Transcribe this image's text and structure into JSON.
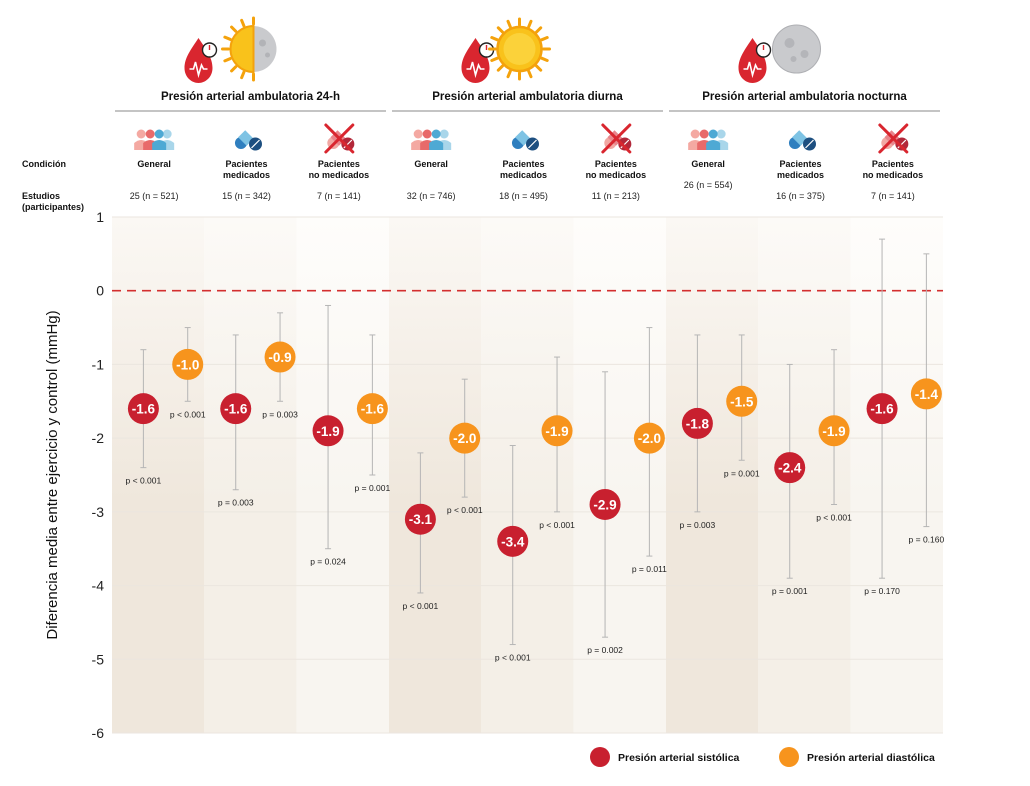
{
  "chart_data": {
    "type": "dot-errorbar",
    "ylabel": "Diferencia media entre ejercicio y control (mmHg)",
    "ylim": [
      -6,
      1
    ],
    "yticks": [
      1,
      0,
      -1,
      -2,
      -3,
      -4,
      -5,
      -6
    ],
    "reference_line": 0,
    "row_labels": {
      "condition": "Condición",
      "studies": "Estudios",
      "studies_sub": "(participantes)"
    },
    "groups": [
      {
        "title": "Presión arterial ambulatoria 24-h",
        "icon": "sun-moon-icon",
        "subgroups": [
          {
            "condition": [
              "General"
            ],
            "icon": "people-icon",
            "studies": "25 (n = 521)",
            "systolic": {
              "mean": -1.6,
              "label": "-1.6",
              "ci": [
                -2.4,
                -0.8
              ],
              "p": "p < 0.001"
            },
            "diastolic": {
              "mean": -1.0,
              "label": "-1.0",
              "ci": [
                -1.5,
                -0.5
              ],
              "p": "p < 0.001"
            }
          },
          {
            "condition": [
              "Pacientes",
              "medicados"
            ],
            "icon": "pill-icon",
            "studies": "15 (n = 342)",
            "systolic": {
              "mean": -1.6,
              "label": "-1.6",
              "ci": [
                -2.7,
                -0.6
              ],
              "p": "p = 0.003"
            },
            "diastolic": {
              "mean": -0.9,
              "label": "-0.9",
              "ci": [
                -1.5,
                -0.3
              ],
              "p": "p = 0.003"
            }
          },
          {
            "condition": [
              "Pacientes",
              "no medicados"
            ],
            "icon": "no-pill-icon",
            "studies": "7 (n = 141)",
            "systolic": {
              "mean": -1.9,
              "label": "-1.9",
              "ci": [
                -3.5,
                -0.2
              ],
              "p": "p = 0.024"
            },
            "diastolic": {
              "mean": -1.6,
              "label": "-1.6",
              "ci": [
                -2.5,
                -0.6
              ],
              "p": "p = 0.001"
            }
          }
        ]
      },
      {
        "title": "Presión arterial ambulatoria diurna",
        "icon": "sun-icon",
        "subgroups": [
          {
            "condition": [
              "General"
            ],
            "icon": "people-icon",
            "studies": "32  (n = 746)",
            "systolic": {
              "mean": -3.1,
              "label": "-3.1",
              "ci": [
                -4.1,
                -2.2
              ],
              "p": "p < 0.001"
            },
            "diastolic": {
              "mean": -2.0,
              "label": "-2.0",
              "ci": [
                -2.8,
                -1.2
              ],
              "p": "p < 0.001"
            }
          },
          {
            "condition": [
              "Pacientes",
              "medicados"
            ],
            "icon": "pill-icon",
            "studies": "18 (n = 495)",
            "systolic": {
              "mean": -3.4,
              "label": "-3.4",
              "ci": [
                -4.8,
                -2.1
              ],
              "p": "p < 0.001"
            },
            "diastolic": {
              "mean": -1.9,
              "label": "-1.9",
              "ci": [
                -3.0,
                -0.9
              ],
              "p": "p < 0.001"
            }
          },
          {
            "condition": [
              "Pacientes",
              "no medicados"
            ],
            "icon": "no-pill-icon",
            "studies": "11 (n = 213)",
            "systolic": {
              "mean": -2.9,
              "label": "-2.9",
              "ci": [
                -4.7,
                -1.1
              ],
              "p": "p = 0.002"
            },
            "diastolic": {
              "mean": -2.0,
              "label": "-2.0",
              "ci": [
                -3.6,
                -0.5
              ],
              "p": "p = 0.011"
            }
          }
        ]
      },
      {
        "title": "Presión arterial ambulatoria nocturna",
        "icon": "moon-icon",
        "subgroups": [
          {
            "condition": [
              "General"
            ],
            "icon": "people-icon",
            "studies": "26 (n = 554)",
            "systolic": {
              "mean": -1.8,
              "label": "-1.8",
              "ci": [
                -3.0,
                -0.6
              ],
              "p": "p = 0.003"
            },
            "diastolic": {
              "mean": -1.5,
              "label": "-1.5",
              "ci": [
                -2.3,
                -0.6
              ],
              "p": "p = 0.001"
            }
          },
          {
            "condition": [
              "Pacientes",
              "medicados"
            ],
            "icon": "pill-icon",
            "studies": "16 (n = 375)",
            "systolic": {
              "mean": -2.4,
              "label": "-2.4",
              "ci": [
                -3.9,
                -1.0
              ],
              "p": "p = 0.001"
            },
            "diastolic": {
              "mean": -1.9,
              "label": "-1.9",
              "ci": [
                -2.9,
                -0.8
              ],
              "p": "p < 0.001"
            }
          },
          {
            "condition": [
              "Pacientes",
              "no medicados"
            ],
            "icon": "no-pill-icon",
            "studies": "7 (n = 141)",
            "systolic": {
              "mean": -1.6,
              "label": "-1.6",
              "ci": [
                -3.9,
                0.7
              ],
              "p": "p = 0.170"
            },
            "diastolic": {
              "mean": -1.4,
              "label": "-1.4",
              "ci": [
                -3.2,
                0.5
              ],
              "p": "p = 0.160"
            }
          }
        ]
      }
    ],
    "legend": {
      "placement": "bottom-right",
      "items": [
        {
          "name": "Presión arterial sistólica",
          "color": "#c8202f"
        },
        {
          "name": "Presión arterial diastólica",
          "color": "#f7941d"
        }
      ]
    },
    "colors": {
      "systolic": "#c8202f",
      "diastolic": "#f7941d",
      "reference": "#d32f2f",
      "errorbar": "#b5b5b5"
    }
  }
}
